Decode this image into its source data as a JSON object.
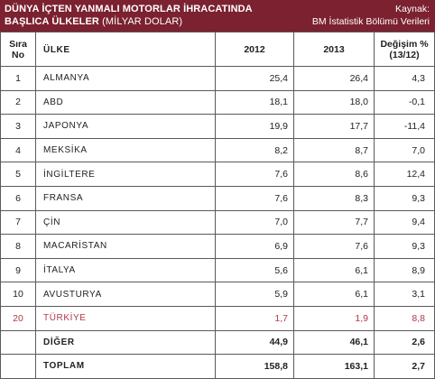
{
  "header": {
    "title_line1": "DÜNYA İÇTEN YANMALI MOTORLAR İHRACATINDA",
    "title_line2_bold": "BAŞLICA ÜLKELER",
    "title_line2_light": "(MİLYAR DOLAR)",
    "source_label": "Kaynak:",
    "source_value": "BM İstatistik Bölümü Verileri",
    "bg_color": "#7b2130"
  },
  "table": {
    "headers": {
      "rank_line1": "Sıra",
      "rank_line2": "No",
      "country": "ÜLKE",
      "y2012": "2012",
      "y2013": "2013",
      "change_line1": "Değişim %",
      "change_line2": "(13/12)"
    },
    "rows": [
      {
        "rank": "1",
        "country": "ALMANYA",
        "v2012": "25,4",
        "v2013": "26,4",
        "change": "4,3"
      },
      {
        "rank": "2",
        "country": "ABD",
        "v2012": "18,1",
        "v2013": "18,0",
        "change": "-0,1"
      },
      {
        "rank": "3",
        "country": "JAPONYA",
        "v2012": "19,9",
        "v2013": "17,7",
        "change": "-11,4"
      },
      {
        "rank": "4",
        "country": "MEKSİKA",
        "v2012": "8,2",
        "v2013": "8,7",
        "change": "7,0"
      },
      {
        "rank": "5",
        "country": "İNGİLTERE",
        "v2012": "7,6",
        "v2013": "8,6",
        "change": "12,4"
      },
      {
        "rank": "6",
        "country": "FRANSA",
        "v2012": "7,6",
        "v2013": "8,3",
        "change": "9,3"
      },
      {
        "rank": "7",
        "country": "ÇİN",
        "v2012": "7,0",
        "v2013": "7,7",
        "change": "9,4"
      },
      {
        "rank": "8",
        "country": "MACARİSTAN",
        "v2012": "6,9",
        "v2013": "7,6",
        "change": "9,3"
      },
      {
        "rank": "9",
        "country": "İTALYA",
        "v2012": "5,6",
        "v2013": "6,1",
        "change": "8,9"
      },
      {
        "rank": "10",
        "country": "AVUSTURYA",
        "v2012": "5,9",
        "v2013": "6,1",
        "change": "3,1"
      },
      {
        "rank": "20",
        "country": "TÜRKİYE",
        "v2012": "1,7",
        "v2013": "1,9",
        "change": "8,8"
      }
    ],
    "other": {
      "country": "DİĞER",
      "v2012": "44,9",
      "v2013": "46,1",
      "change": "2,6"
    },
    "total": {
      "country": "TOPLAM",
      "v2012": "158,8",
      "v2013": "163,1",
      "change": "2,7"
    },
    "highlight_color": "#b03a48"
  }
}
